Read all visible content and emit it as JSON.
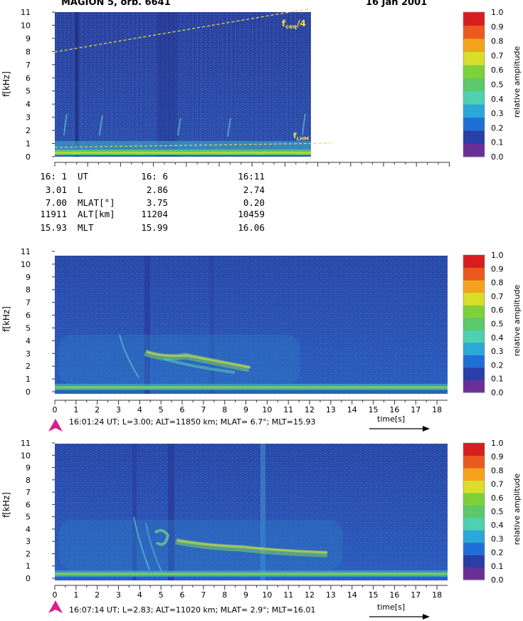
{
  "header": {
    "left_title": "MAGION 5, orb. 6641",
    "right_date": "16 Jan 2001"
  },
  "colorbar": {
    "label": "relative amplitude",
    "ticks": [
      "0.0",
      "0.1",
      "0.2",
      "0.3",
      "0.4",
      "0.5",
      "0.6",
      "0.7",
      "0.8",
      "0.9",
      "1.0"
    ],
    "colors": [
      "#6a2f96",
      "#2a3ea8",
      "#1f6fd6",
      "#2aa8d8",
      "#4fd0b0",
      "#5cc86a",
      "#7ed03a",
      "#d8de2a",
      "#f4a21e",
      "#ea5a1e",
      "#d81e1e"
    ]
  },
  "orbit_table": {
    "rows": [
      [
        "16: 1",
        "UT",
        "16: 6",
        "16:11"
      ],
      [
        "3.01",
        "L",
        "2.86",
        "2.74"
      ],
      [
        "7.00",
        "MLAT[°]",
        "3.75",
        "0.20"
      ],
      [
        "11911",
        "ALT[km]",
        "11204",
        "10459"
      ],
      [
        "15.93",
        "MLT",
        "15.99",
        "16.06"
      ]
    ]
  },
  "chart_data": [
    {
      "type": "heatmap",
      "title": "",
      "ylabel": "f[kHz]",
      "ylim": [
        0,
        11
      ],
      "yticks": [
        "0",
        "1",
        "2",
        "3",
        "4",
        "5",
        "6",
        "7",
        "8",
        "9",
        "10",
        "11"
      ],
      "xlim": [
        16.0167,
        16.2
      ],
      "annotations": [
        {
          "label": "f",
          "subscript": "ceq",
          "suffix": "/4",
          "line_from": [
            16.0167,
            8.0
          ],
          "line_to": [
            16.2,
            11.0
          ]
        },
        {
          "label": "f",
          "subscript": "LHM",
          "suffix": "",
          "line_from": [
            16.0167,
            0.9
          ],
          "line_to": [
            16.2,
            1.1
          ]
        }
      ],
      "colorbar": {
        "range": [
          0.0,
          1.0
        ],
        "label": "relative amplitude"
      }
    },
    {
      "type": "heatmap",
      "ylabel": "f[kHz]",
      "xlabel": "time[s]",
      "ylim": [
        0,
        11
      ],
      "xlim": [
        0,
        18.5
      ],
      "yticks": [
        "0",
        "1",
        "2",
        "3",
        "4",
        "5",
        "6",
        "7",
        "8",
        "9",
        "10",
        "11"
      ],
      "xticks": [
        "0",
        "1",
        "2",
        "3",
        "4",
        "5",
        "6",
        "7",
        "8",
        "9",
        "10",
        "11",
        "12",
        "13",
        "14",
        "15",
        "16",
        "17",
        "18"
      ],
      "caption": "16:01:24 UT; L=3.00; ALT=11850 km; MLAT= 6.7°; MLT=15.93",
      "colorbar": {
        "range": [
          0.0,
          1.0
        ],
        "label": "relative amplitude"
      }
    },
    {
      "type": "heatmap",
      "ylabel": "f[kHz]",
      "xlabel": "time[s]",
      "ylim": [
        0,
        11
      ],
      "xlim": [
        0,
        18.5
      ],
      "yticks": [
        "0",
        "1",
        "2",
        "3",
        "4",
        "5",
        "6",
        "7",
        "8",
        "9",
        "10",
        "11"
      ],
      "xticks": [
        "0",
        "1",
        "2",
        "3",
        "4",
        "5",
        "6",
        "7",
        "8",
        "9",
        "10",
        "11",
        "12",
        "13",
        "14",
        "15",
        "16",
        "17",
        "18"
      ],
      "caption": "16:07:14 UT; L=2.83; ALT=11020 km; MLAT= 2.9°; MLT=16.01",
      "colorbar": {
        "range": [
          0.0,
          1.0
        ],
        "label": "relative amplitude"
      }
    }
  ]
}
